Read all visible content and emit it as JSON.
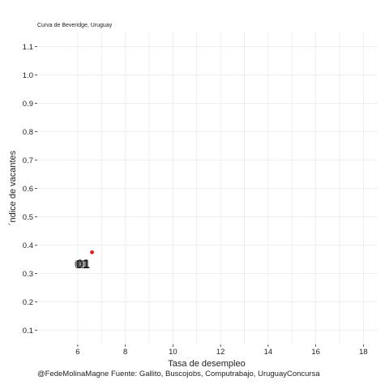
{
  "chart_data": {
    "type": "scatter",
    "title": "Curva de Beveridge, Uruguay",
    "xlabel": "Tasa de desempleo",
    "ylabel": "´ndice de vacantes",
    "caption": "@FedeMolinaMagne Fuente: Gallito, Buscojobs, Computrabajo, UruguayConcursa",
    "xlim": [
      4.3,
      18.6
    ],
    "ylim": [
      0.05,
      1.15
    ],
    "x_ticks": [
      6,
      8,
      10,
      12,
      14,
      16,
      18
    ],
    "y_ticks": [
      0.1,
      0.2,
      0.3,
      0.4,
      0.5,
      0.6,
      0.7,
      0.8,
      0.9,
      1.0,
      1.1
    ],
    "grid": true,
    "points": [
      {
        "x": 6.6,
        "y": 0.375,
        "color": "#e41a1c"
      }
    ],
    "point_labels": [
      {
        "x": 6.2,
        "y": 0.33,
        "text": "01"
      }
    ]
  }
}
